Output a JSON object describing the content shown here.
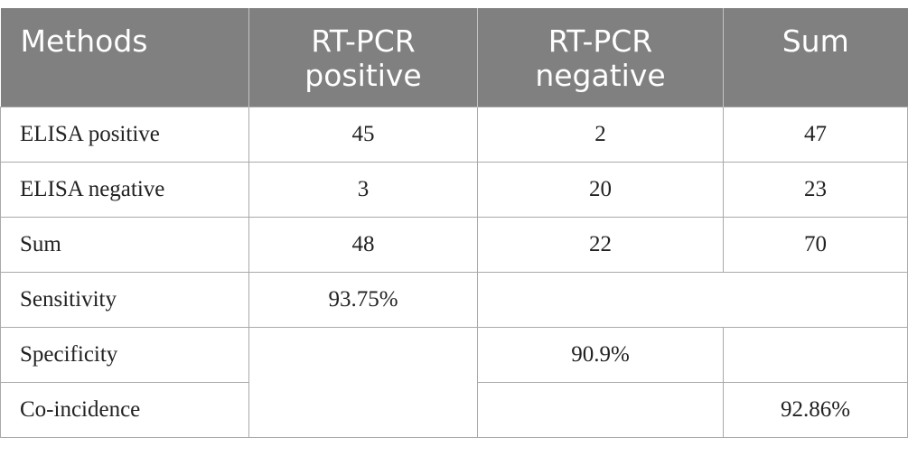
{
  "header": {
    "methods": "Methods",
    "pcr_positive_line1": "RT-PCR",
    "pcr_positive_line2": "positive",
    "pcr_negative_line1": "RT-PCR",
    "pcr_negative_line2": "negative",
    "sum": "Sum"
  },
  "rows": {
    "elisa_positive": {
      "label": "ELISA positive",
      "pcr_positive": "45",
      "pcr_negative": "2",
      "sum": "47"
    },
    "elisa_negative": {
      "label": "ELISA negative",
      "pcr_positive": "3",
      "pcr_negative": "20",
      "sum": "23"
    },
    "sum": {
      "label": "Sum",
      "pcr_positive": "48",
      "pcr_negative": "22",
      "sum": "70"
    },
    "sensitivity": {
      "label": "Sensitivity",
      "value": "93.75%"
    },
    "specificity": {
      "label": "Specificity",
      "value": "90.9%"
    },
    "coincidence": {
      "label": "Co-incidence",
      "value": "92.86%"
    }
  },
  "colors": {
    "header_background": "#808080",
    "header_text": "#ffffff",
    "border": "#a9a9a9"
  }
}
